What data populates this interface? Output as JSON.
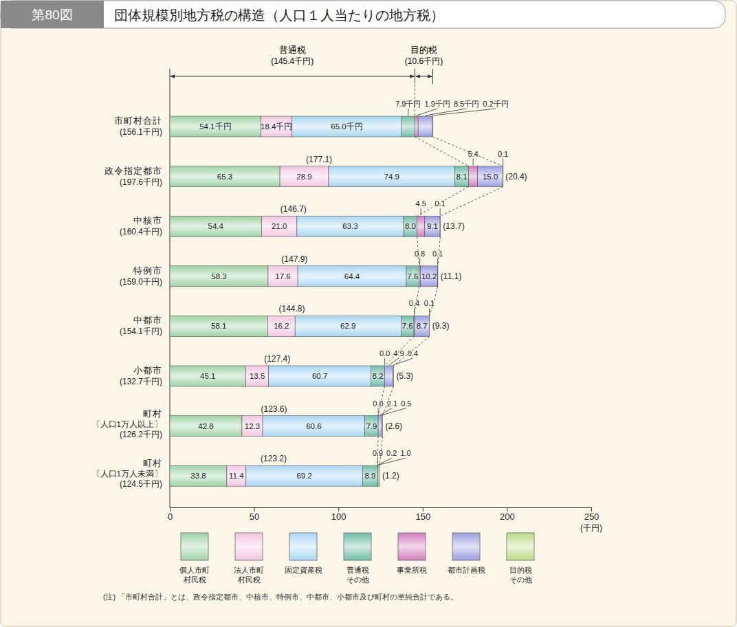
{
  "chart_data": {
    "type": "bar",
    "orientation": "horizontal",
    "stacked": true,
    "data_labels": true,
    "legend": "bottom",
    "figure_number": "第80図",
    "title": "団体規模別地方税の構造（人口１人当たりの地方税）",
    "categories": [
      "市町村合計",
      "政令指定都市",
      "中核市",
      "特例市",
      "中都市",
      "小都市",
      "町村〔人口1万人以上〕",
      "町村〔人口1万人未満〕"
    ],
    "totals": [
      156.1,
      197.6,
      160.4,
      159.0,
      154.1,
      132.7,
      126.2,
      124.5
    ],
    "total_labels": [
      "(156.1千円)",
      "(197.6千円)",
      "(160.4千円)",
      "(159.0千円)",
      "(154.1千円)",
      "(132.7千円)",
      "(126.2千円)",
      "(124.5千円)"
    ],
    "group_titles": [
      "普通税",
      "目的税"
    ],
    "ordinary_totals": [
      145.4,
      177.1,
      146.7,
      147.9,
      144.8,
      127.4,
      123.6,
      123.2
    ],
    "ordinary_total_labels": [
      "(145.4千円)",
      "(177.1)",
      "(146.7)",
      "(147.9)",
      "(144.8)",
      "(127.4)",
      "(123.6)",
      "(123.2)"
    ],
    "purpose_totals": [
      10.6,
      20.4,
      13.7,
      11.1,
      9.3,
      5.3,
      2.6,
      1.2
    ],
    "purpose_total_labels": [
      "(10.6千円)",
      "(20.4)",
      "(13.7)",
      "(11.1)",
      "(9.3)",
      "(5.3)",
      "(2.6)",
      "(1.2)"
    ],
    "series": [
      {
        "name": "個人市町村民税",
        "color": "#9fd3a6",
        "values": [
          54.1,
          65.3,
          54.4,
          58.3,
          58.1,
          45.1,
          42.8,
          33.8
        ],
        "value_labels": [
          "54.1千円",
          "65.3",
          "54.4",
          "58.3",
          "58.1",
          "45.1",
          "42.8",
          "33.8"
        ]
      },
      {
        "name": "法人市町村民税",
        "color": "#f1c6e0",
        "values": [
          18.4,
          28.9,
          21.0,
          17.6,
          16.2,
          13.5,
          12.3,
          11.4
        ],
        "value_labels": [
          "18.4千円",
          "28.9",
          "21.0",
          "17.6",
          "16.2",
          "13.5",
          "12.3",
          "11.4"
        ]
      },
      {
        "name": "固定資産税",
        "color": "#a9d6f2",
        "values": [
          65.0,
          74.9,
          63.3,
          64.4,
          62.9,
          60.7,
          60.6,
          69.2
        ],
        "value_labels": [
          "65.0千円",
          "74.9",
          "63.3",
          "64.4",
          "62.9",
          "60.7",
          "60.6",
          "69.2"
        ]
      },
      {
        "name": "普通税その他",
        "color": "#6fbca6",
        "values": [
          7.9,
          8.1,
          8.0,
          7.6,
          7.6,
          8.2,
          7.9,
          8.9
        ],
        "value_labels": [
          "7.9千円",
          "8.1",
          "8.0",
          "7.6",
          "7.6",
          "8.2",
          "7.9",
          "8.9"
        ]
      },
      {
        "name": "事業所税",
        "color": "#d27cbd",
        "values": [
          1.9,
          5.4,
          4.5,
          0.8,
          0.4,
          0.0,
          0.0,
          0.0
        ],
        "value_labels": [
          "1.9千円",
          "5.4",
          "4.5",
          "0.8",
          "0.4",
          "0.0",
          "0.0",
          "0.0"
        ]
      },
      {
        "name": "都市計画税",
        "color": "#9a9ee0",
        "values": [
          8.5,
          15.0,
          9.1,
          10.2,
          8.7,
          4.9,
          2.1,
          0.2
        ],
        "value_labels": [
          "8.5千円",
          "15.0",
          "9.1",
          "10.2",
          "8.7",
          "4.9",
          "2.1",
          "0.2"
        ]
      },
      {
        "name": "目的税その他",
        "color": "#b9dc84",
        "values": [
          0.2,
          0.1,
          0.1,
          0.1,
          0.1,
          0.4,
          0.5,
          1.0
        ],
        "value_labels": [
          "0.2千円",
          "0.1",
          "0.1",
          "0.1",
          "0.1",
          "0.4",
          "0.5",
          "1.0"
        ]
      }
    ],
    "xlim": [
      0,
      250
    ],
    "xticks": [
      0,
      50,
      100,
      150,
      200,
      250
    ],
    "x_label": "(千円)",
    "note": "(注) 「市町村合計」とは、政令指定都市、中核市、特例市、中都市、小都市及び町村の単純合計である。"
  }
}
